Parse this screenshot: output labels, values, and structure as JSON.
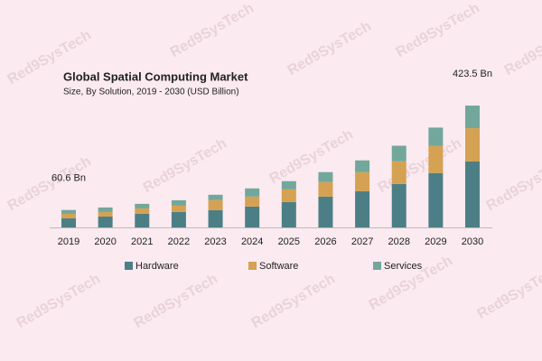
{
  "chart_data": {
    "type": "stacked-bar",
    "title": "Global Spatial Computing Market",
    "subtitle": "Size, By Solution, 2019 - 2030 (USD Billion)",
    "watermark": "Red9SysTech",
    "categories": [
      "2019",
      "2020",
      "2021",
      "2022",
      "2023",
      "2024",
      "2025",
      "2026",
      "2027",
      "2028",
      "2029",
      "2030"
    ],
    "series": [
      {
        "name": "Hardware",
        "color": "#4b7f85",
        "values": [
          31.5,
          37.8,
          47.3,
          53.6,
          60,
          72.5,
          88.3,
          107,
          126,
          151,
          189,
          229
        ]
      },
      {
        "name": "Software",
        "color": "#d5a152",
        "values": [
          15.8,
          15.8,
          18.9,
          22,
          34.7,
          34.7,
          44.1,
          50.5,
          66,
          79,
          95,
          116
        ]
      },
      {
        "name": "Services",
        "color": "#72a79b",
        "values": [
          13.3,
          15.8,
          15.8,
          18.9,
          18.9,
          28.4,
          28.4,
          34.7,
          41,
          54,
          63,
          78.5
        ]
      }
    ],
    "annotations": [
      {
        "category": "2019",
        "value": 60.6,
        "label": "60.6 Bn"
      },
      {
        "category": "2030",
        "value": 423.5,
        "label": "423.5 Bn"
      }
    ]
  }
}
